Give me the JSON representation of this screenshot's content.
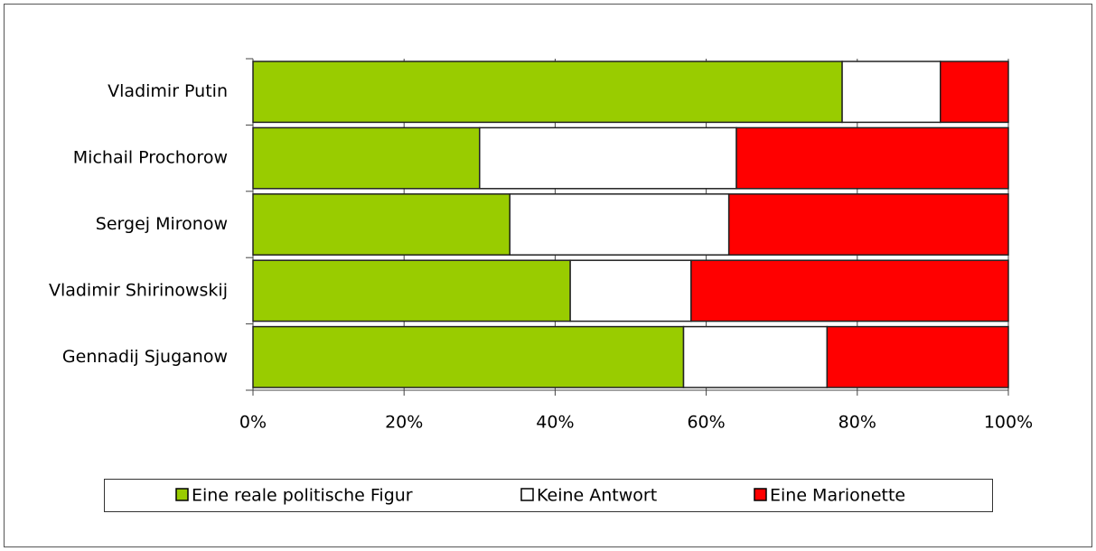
{
  "chart_data": {
    "type": "stacked-bar-horizontal",
    "categories": [
      "Vladimir Putin",
      "Michail Prochorow",
      "Sergej Mironow",
      "Vladimir Shirinowskij",
      "Gennadij Sjuganow"
    ],
    "series": [
      {
        "name": "Eine reale politische Figur",
        "color": "#99cc00",
        "values": [
          78,
          30,
          34,
          42,
          57
        ]
      },
      {
        "name": "Keine Antwort",
        "color": "#ffffff",
        "values": [
          13,
          34,
          29,
          16,
          19
        ]
      },
      {
        "name": "Eine Marionette",
        "color": "#ff0000",
        "values": [
          9,
          36,
          37,
          42,
          24
        ]
      }
    ],
    "xlim": [
      0,
      100
    ],
    "xticks": [
      {
        "value": 0,
        "label": "0%"
      },
      {
        "value": 20,
        "label": "20%"
      },
      {
        "value": 40,
        "label": "40%"
      },
      {
        "value": 60,
        "label": "60%"
      },
      {
        "value": 80,
        "label": "80%"
      },
      {
        "value": 100,
        "label": "100%"
      }
    ],
    "grid": true,
    "legend": "bottom"
  }
}
